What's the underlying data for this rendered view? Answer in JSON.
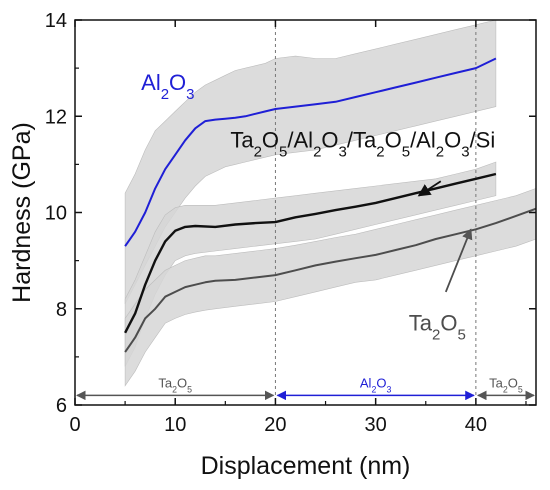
{
  "chart_data": {
    "type": "line",
    "xlabel": "Displacement (nm)",
    "ylabel": "Hardness (GPa)",
    "xlim": [
      0,
      46
    ],
    "ylim": [
      6,
      14
    ],
    "xticks": [
      0,
      10,
      20,
      30,
      40
    ],
    "yticks": [
      6,
      8,
      10,
      12,
      14
    ],
    "grid": false,
    "colors": {
      "Al2O3": "#1f1fd6",
      "multilayer": "#111111",
      "Ta2O5": "#4d4d4d",
      "band": "#d6d6d6",
      "region_al2o3": "#1f1fd6",
      "region_ta2o5": "#555555"
    },
    "series": [
      {
        "name": "Al2O3",
        "x": [
          5,
          6,
          7,
          8,
          9,
          10,
          11,
          12,
          13,
          14,
          15,
          16,
          17,
          18,
          19,
          20,
          22,
          24,
          26,
          28,
          30,
          32,
          34,
          36,
          38,
          40,
          42
        ],
        "values": [
          9.3,
          9.6,
          10.0,
          10.5,
          10.9,
          11.2,
          11.5,
          11.75,
          11.9,
          11.93,
          11.95,
          11.97,
          12.0,
          12.05,
          12.1,
          12.15,
          12.2,
          12.25,
          12.3,
          12.4,
          12.5,
          12.6,
          12.7,
          12.8,
          12.9,
          13.0,
          13.2
        ],
        "upper": [
          10.4,
          10.8,
          11.3,
          11.7,
          11.9,
          12.1,
          12.3,
          12.5,
          12.65,
          12.75,
          12.85,
          12.95,
          13.0,
          13.05,
          13.1,
          13.2,
          13.25,
          13.2,
          13.2,
          13.3,
          13.4,
          13.5,
          13.6,
          13.7,
          13.8,
          13.9,
          14.0
        ],
        "lower": [
          8.1,
          8.5,
          8.9,
          9.3,
          9.7,
          10.0,
          10.3,
          10.55,
          10.75,
          10.85,
          10.95,
          11.0,
          11.05,
          11.1,
          11.15,
          11.2,
          11.25,
          11.3,
          11.4,
          11.5,
          11.6,
          11.7,
          11.8,
          11.9,
          12.0,
          12.1,
          12.2
        ]
      },
      {
        "name": "Ta2O5/Al2O3/Ta2O5/Al2O3/Si",
        "x": [
          5,
          6,
          7,
          8,
          9,
          10,
          11,
          12,
          14,
          16,
          18,
          20,
          22,
          24,
          26,
          28,
          30,
          32,
          34,
          36,
          38,
          40,
          42
        ],
        "values": [
          7.5,
          7.9,
          8.5,
          9.0,
          9.4,
          9.62,
          9.7,
          9.72,
          9.7,
          9.75,
          9.78,
          9.8,
          9.9,
          9.97,
          10.05,
          10.12,
          10.2,
          10.3,
          10.4,
          10.5,
          10.6,
          10.7,
          10.8
        ],
        "upper": [
          8.2,
          8.6,
          9.1,
          9.6,
          9.95,
          10.1,
          10.15,
          10.15,
          10.15,
          10.2,
          10.25,
          10.3,
          10.35,
          10.4,
          10.45,
          10.5,
          10.55,
          10.6,
          10.65,
          10.7,
          10.8,
          10.9,
          11.05
        ],
        "lower": [
          6.8,
          7.2,
          7.8,
          8.3,
          8.7,
          9.0,
          9.1,
          9.15,
          9.2,
          9.25,
          9.3,
          9.35,
          9.4,
          9.45,
          9.55,
          9.65,
          9.75,
          9.85,
          9.95,
          10.05,
          10.15,
          10.25,
          10.35
        ]
      },
      {
        "name": "Ta2O5",
        "x": [
          5,
          6,
          7,
          8,
          9,
          10,
          11,
          12,
          13,
          14,
          16,
          18,
          20,
          22,
          24,
          26,
          28,
          30,
          32,
          34,
          36,
          38,
          40,
          42,
          44,
          46
        ],
        "values": [
          7.1,
          7.4,
          7.8,
          8.0,
          8.25,
          8.35,
          8.45,
          8.5,
          8.55,
          8.58,
          8.6,
          8.65,
          8.7,
          8.8,
          8.9,
          8.98,
          9.05,
          9.12,
          9.22,
          9.32,
          9.45,
          9.55,
          9.65,
          9.78,
          9.93,
          10.08
        ],
        "upper": [
          7.8,
          8.1,
          8.4,
          8.6,
          8.8,
          8.9,
          9.0,
          9.05,
          9.1,
          9.1,
          9.15,
          9.2,
          9.25,
          9.32,
          9.4,
          9.48,
          9.55,
          9.65,
          9.75,
          9.85,
          9.95,
          10.05,
          10.15,
          10.25,
          10.35,
          10.5
        ],
        "lower": [
          6.4,
          6.7,
          7.1,
          7.4,
          7.7,
          7.8,
          7.88,
          7.93,
          7.97,
          8.0,
          8.05,
          8.1,
          8.15,
          8.25,
          8.35,
          8.45,
          8.55,
          8.6,
          8.7,
          8.8,
          8.9,
          9.0,
          9.1,
          9.2,
          9.3,
          9.45
        ]
      }
    ],
    "layer_boundaries": [
      20,
      40
    ],
    "regions": [
      {
        "label": "Ta2O5",
        "from": 0,
        "to": 20,
        "y": 6.2,
        "color": "#555555"
      },
      {
        "label": "Al2O3",
        "from": 20,
        "to": 40,
        "y": 6.2,
        "color": "#1f1fd6"
      },
      {
        "label": "Ta2O5",
        "from": 40,
        "to": 46,
        "y": 6.2,
        "color": "#555555"
      }
    ],
    "annotations": [
      {
        "text": "Al2O3",
        "series": "Al2O3",
        "color": "#1f1fd6",
        "at": [
          6.6,
          12.55
        ],
        "arrow": false
      },
      {
        "text": "Ta2O5/Al2O3/Ta2O5/Al2O3/Si",
        "series": "Ta2O5/Al2O3/Ta2O5/Al2O3/Si",
        "color": "#111111",
        "at": [
          15.5,
          11.35
        ],
        "arrow_from": [
          36.5,
          10.65
        ],
        "arrow_to": [
          34.3,
          10.35
        ]
      },
      {
        "text": "Ta2O5",
        "series": "Ta2O5",
        "color": "#4d4d4d",
        "at": [
          33.3,
          7.55
        ],
        "arrow_from": [
          37.0,
          8.35
        ],
        "arrow_to": [
          39.5,
          9.65
        ]
      }
    ]
  }
}
